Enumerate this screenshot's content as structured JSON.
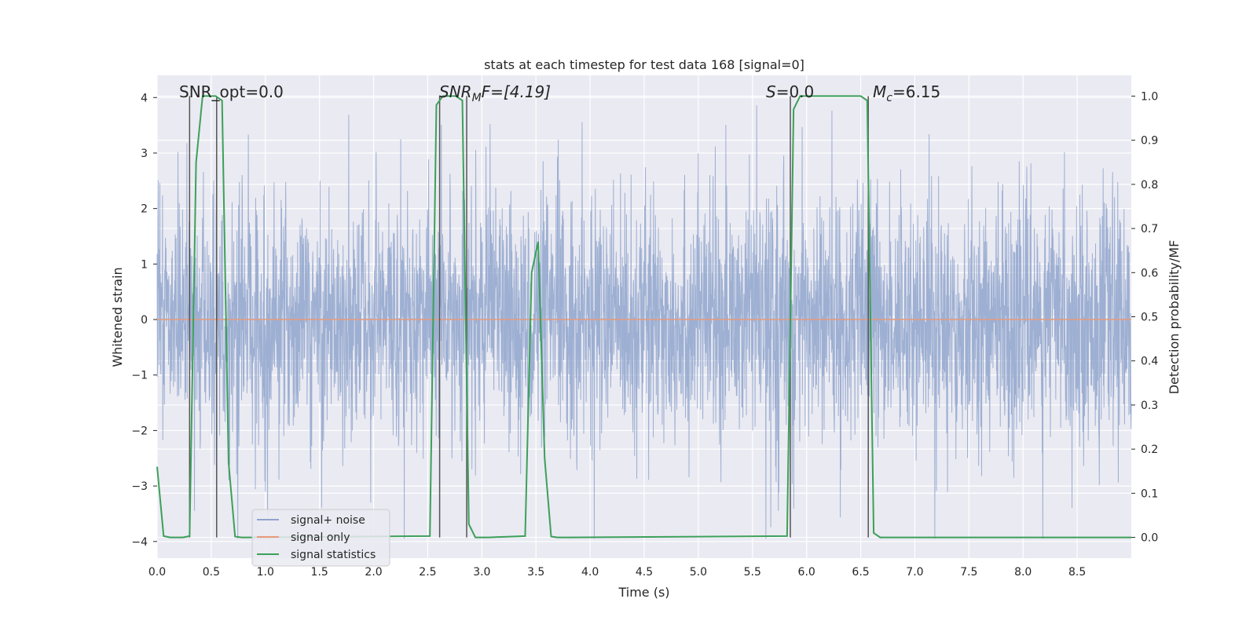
{
  "chart_data": {
    "type": "line",
    "title": "stats at each timestep for test data 168 [signal=0]",
    "xlabel": "Time (s)",
    "ylabel_left": "Whitened strain",
    "ylabel_right": "Detection probability/MF",
    "xlim": [
      0.0,
      9.0
    ],
    "ylim_left": [
      -4.3,
      4.4
    ],
    "ylim_right": [
      -0.047,
      1.047
    ],
    "x_ticks": [
      "0.0",
      "0.5",
      "1.0",
      "1.5",
      "2.0",
      "2.5",
      "3.0",
      "3.5",
      "4.0",
      "4.5",
      "5.0",
      "5.5",
      "6.0",
      "6.5",
      "7.0",
      "7.5",
      "8.0",
      "8.5"
    ],
    "y_ticks_left": [
      "−4",
      "−3",
      "−2",
      "−1",
      "0",
      "1",
      "2",
      "3",
      "4"
    ],
    "y_ticks_right": [
      "0.0",
      "0.1",
      "0.2",
      "0.3",
      "0.4",
      "0.5",
      "0.6",
      "0.7",
      "0.8",
      "0.9",
      "1.0"
    ],
    "grid": true,
    "legend_placement": "lower-left",
    "annotations": {
      "snr_opt": "SNR_opt=0.0",
      "snr_mf_main": "SNR",
      "snr_mf_sub": "M",
      "snr_mf_rest": "F=[4.19]",
      "s_main": "S",
      "s_rest": "=0.0",
      "mc_main": "M",
      "mc_sub": "c",
      "mc_rest": "=6.15"
    },
    "series": [
      {
        "name": "signal+ noise",
        "color": "#8fa4cc",
        "axis": "left",
        "description_values": "whitened noise, roughly uniform band between -2.5 and 2.5 with spikes to about ±4"
      },
      {
        "name": "signal only",
        "color": "#e79a7c",
        "axis": "left",
        "x": [
          0.0,
          9.0
        ],
        "y": [
          0.0,
          0.0
        ]
      },
      {
        "name": "signal statistics",
        "color": "#3ca05a",
        "axis": "right",
        "x": [
          0.0,
          0.06,
          0.12,
          0.18,
          0.24,
          0.3,
          0.36,
          0.42,
          0.48,
          0.54,
          0.6,
          0.66,
          0.72,
          0.78,
          0.84,
          2.52,
          2.58,
          2.64,
          2.7,
          2.76,
          2.82,
          2.88,
          2.94,
          3.0,
          3.06,
          3.4,
          3.46,
          3.52,
          3.58,
          3.64,
          3.7,
          3.76,
          3.82,
          5.82,
          5.88,
          5.94,
          6.0,
          6.06,
          6.5,
          6.56,
          6.62,
          6.68,
          6.74,
          9.0
        ],
        "y": [
          0.16,
          0.003,
          0.0,
          0.0,
          0.0,
          0.003,
          0.85,
          1.0,
          1.0,
          1.0,
          0.99,
          0.17,
          0.002,
          0.0,
          0.0,
          0.003,
          0.98,
          1.0,
          1.0,
          1.0,
          0.99,
          0.03,
          0.0,
          0.0,
          0.0,
          0.003,
          0.6,
          0.67,
          0.18,
          0.002,
          0.0,
          0.0,
          0.0,
          0.003,
          0.97,
          1.0,
          1.0,
          1.0,
          1.0,
          0.99,
          0.01,
          0.0,
          0.0,
          0.0
        ]
      }
    ],
    "vertical_markers": {
      "color": "#555555",
      "x": [
        0.3,
        0.55,
        2.61,
        2.86,
        5.85,
        6.57
      ]
    }
  }
}
